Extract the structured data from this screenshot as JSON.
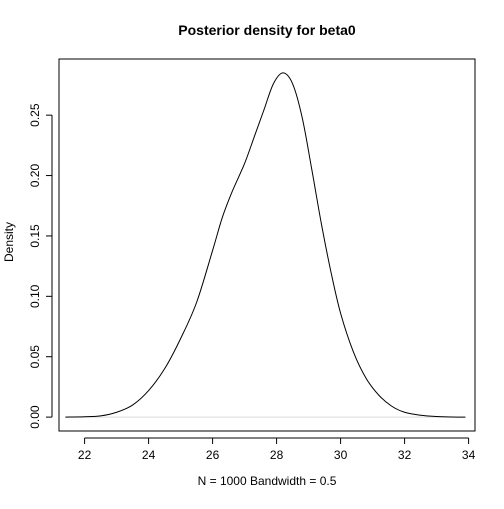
{
  "chart_data": {
    "type": "line",
    "title": "Posterior density for beta0",
    "xlabel": "N = 1000   Bandwidth = 0.5",
    "ylabel": "Density",
    "xlim": [
      21.2,
      34.2
    ],
    "ylim": [
      -0.0115,
      0.2965
    ],
    "x_ticks": [
      22,
      24,
      26,
      28,
      30,
      32,
      34
    ],
    "x_tick_labels": [
      "22",
      "24",
      "26",
      "28",
      "30",
      "32",
      "34"
    ],
    "y_ticks": [
      0.0,
      0.05,
      0.1,
      0.15,
      0.2,
      0.25
    ],
    "y_tick_labels": [
      "0.00",
      "0.05",
      "0.10",
      "0.15",
      "0.20",
      "0.25"
    ],
    "grid": false,
    "legend": "none",
    "zero_baseline": true,
    "line_color": "#000000",
    "baseline_color": "#d9d9d9",
    "series": [
      {
        "x": [
          21.4,
          22.0,
          22.5,
          23.0,
          23.5,
          24.0,
          24.5,
          25.0,
          25.5,
          26.0,
          26.3,
          26.6,
          27.0,
          27.3,
          27.6,
          27.9,
          28.2,
          28.5,
          28.8,
          29.1,
          29.4,
          29.7,
          30.0,
          30.4,
          30.8,
          31.2,
          31.6,
          32.0,
          32.5,
          33.0,
          33.5,
          33.9
        ],
        "y": [
          0.0,
          0.0003,
          0.001,
          0.004,
          0.01,
          0.022,
          0.04,
          0.065,
          0.095,
          0.138,
          0.165,
          0.186,
          0.21,
          0.232,
          0.254,
          0.276,
          0.285,
          0.276,
          0.248,
          0.205,
          0.16,
          0.12,
          0.086,
          0.054,
          0.032,
          0.018,
          0.009,
          0.004,
          0.0015,
          0.0005,
          0.0001,
          0.0
        ]
      }
    ]
  }
}
